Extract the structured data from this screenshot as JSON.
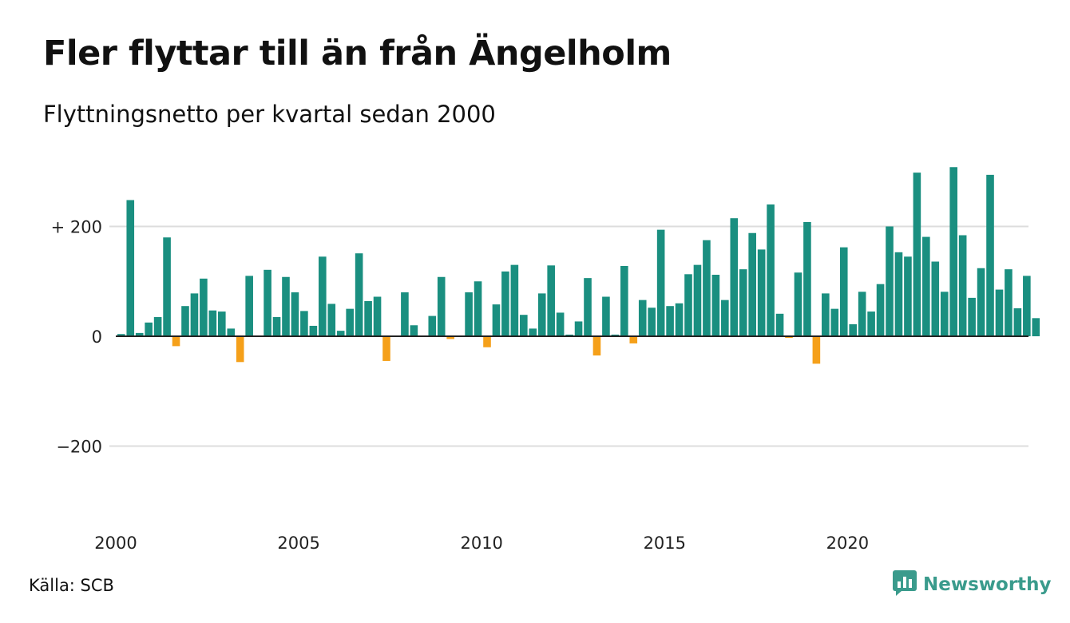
{
  "title": "Fler flyttar till än från Ängelholm",
  "subtitle": "Flyttningsnetto per kvartal sedan 2000",
  "source": "Källa: SCB",
  "brand": {
    "name": "Newsworthy",
    "icon": "newsworthy-logo-icon"
  },
  "colors": {
    "positive": "#1a8f80",
    "negative": "#f5a01a",
    "grid": "#dddddd",
    "brand": "#3a9b8c"
  },
  "chart_data": {
    "type": "bar",
    "xlabel": "",
    "ylabel": "",
    "ylim": [
      -300,
      320
    ],
    "yticks": [
      {
        "value": 200,
        "label": "+ 200"
      },
      {
        "value": 0,
        "label": "0"
      },
      {
        "value": -200,
        "label": "−200"
      }
    ],
    "xticks": [
      {
        "year": 2000,
        "label": "2000"
      },
      {
        "year": 2005,
        "label": "2005"
      },
      {
        "year": 2010,
        "label": "2010"
      },
      {
        "year": 2015,
        "label": "2015"
      },
      {
        "year": 2020,
        "label": "2020"
      }
    ],
    "start": "2000 Q1",
    "grid": true,
    "legend": "none",
    "values": [
      4,
      248,
      6,
      25,
      35,
      180,
      -18,
      55,
      78,
      105,
      47,
      45,
      14,
      -47,
      110,
      0,
      121,
      35,
      108,
      80,
      46,
      19,
      145,
      59,
      10,
      50,
      151,
      64,
      72,
      -45,
      0,
      80,
      20,
      0,
      37,
      108,
      -5,
      0,
      80,
      100,
      -20,
      58,
      118,
      130,
      39,
      14,
      78,
      129,
      43,
      3,
      27,
      106,
      -35,
      72,
      3,
      128,
      -13,
      66,
      52,
      194,
      55,
      60,
      113,
      130,
      175,
      112,
      66,
      215,
      122,
      188,
      158,
      240,
      41,
      -3,
      116,
      208,
      -50,
      78,
      50,
      162,
      22,
      81,
      45,
      95,
      200,
      153,
      145,
      298,
      181,
      136,
      81,
      308,
      184,
      70,
      124,
      294,
      85,
      122,
      51,
      110,
      33
    ]
  }
}
